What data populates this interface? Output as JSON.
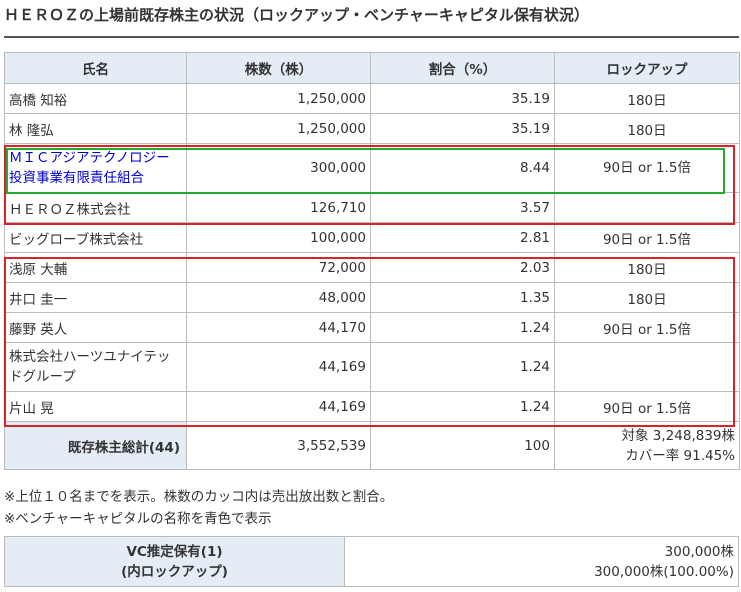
{
  "title": "ＨＥＲＯＺの上場前既存株主の状況（ロックアップ・ベンチャーキャピタル保有状況）",
  "headers": [
    "氏名",
    "株数（株）",
    "割合（%）",
    "ロックアップ"
  ],
  "rows": [
    {
      "name": "高橋 知裕",
      "shares": "1,250,000",
      "ratio": "35.19",
      "lockup": "180日"
    },
    {
      "name": "林 隆弘",
      "shares": "1,250,000",
      "ratio": "35.19",
      "lockup": "180日"
    },
    {
      "name": "ＭＩＣアジアテクノロジー投資事業有限責任組合",
      "shares": "300,000",
      "ratio": "8.44",
      "lockup": "90日 or 1.5倍"
    },
    {
      "name": "ＨＥＲＯＺ株式会社",
      "shares": "126,710",
      "ratio": "3.57",
      "lockup": ""
    },
    {
      "name": "ビッグローブ株式会社",
      "shares": "100,000",
      "ratio": "2.81",
      "lockup": "90日 or 1.5倍"
    },
    {
      "name": "浅原 大輔",
      "shares": "72,000",
      "ratio": "2.03",
      "lockup": "180日"
    },
    {
      "name": "井口 圭一",
      "shares": "48,000",
      "ratio": "1.35",
      "lockup": "180日"
    },
    {
      "name": "藤野 英人",
      "shares": "44,170",
      "ratio": "1.24",
      "lockup": "90日 or 1.5倍"
    },
    {
      "name": "株式会社ハーツユナイテッドグループ",
      "shares": "44,169",
      "ratio": "1.24",
      "lockup": ""
    },
    {
      "name": "片山 晃",
      "shares": "44,169",
      "ratio": "1.24",
      "lockup": "90日 or 1.5倍"
    }
  ],
  "total": {
    "label": "既存株主総計(44)",
    "shares": "3,552,539",
    "ratio": "100",
    "target": "対象 3,248,839株",
    "coverage": "カバー率 91.45%"
  },
  "notes": [
    "※上位１０名までを表示。株数のカッコ内は売出放出数と割合。",
    "※ベンチャーキャピタルの名称を青色で表示"
  ],
  "vc": {
    "label_line1": "VC推定保有(1)",
    "label_line2": "(内ロックアップ)",
    "value_line1": "300,000株",
    "value_line2": "300,000株(100.00%)"
  },
  "colors": {
    "header_bg": "#e4ecf6",
    "vc_text": "#0000cc",
    "highlight_red": "#d8232a",
    "highlight_green": "#22aa33"
  }
}
